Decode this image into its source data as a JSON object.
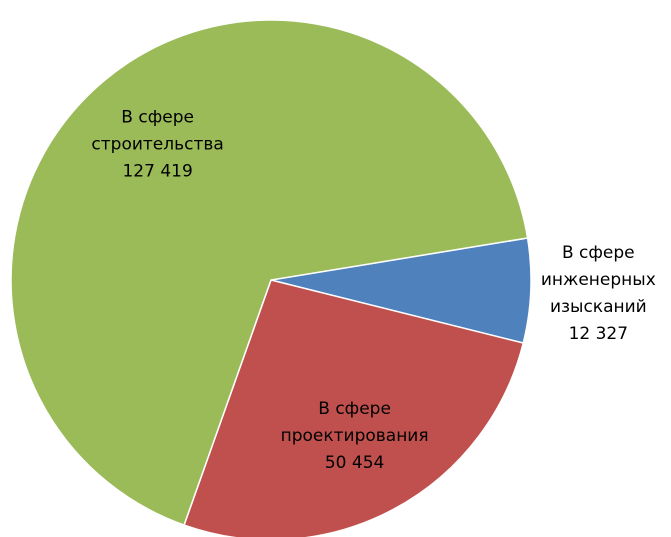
{
  "chart_data": {
    "type": "pie",
    "categories": [
      [
        "В сфере",
        "инженерных",
        "изысканий"
      ],
      [
        "В сфере",
        "проектирования"
      ],
      [
        "В сфере",
        "строительства"
      ]
    ],
    "values": [
      12327,
      50454,
      127419
    ],
    "value_labels": [
      "12 327",
      "50 454",
      "127 419"
    ],
    "colors": [
      "#4f81bd",
      "#c0504d",
      "#9bbb59"
    ]
  }
}
